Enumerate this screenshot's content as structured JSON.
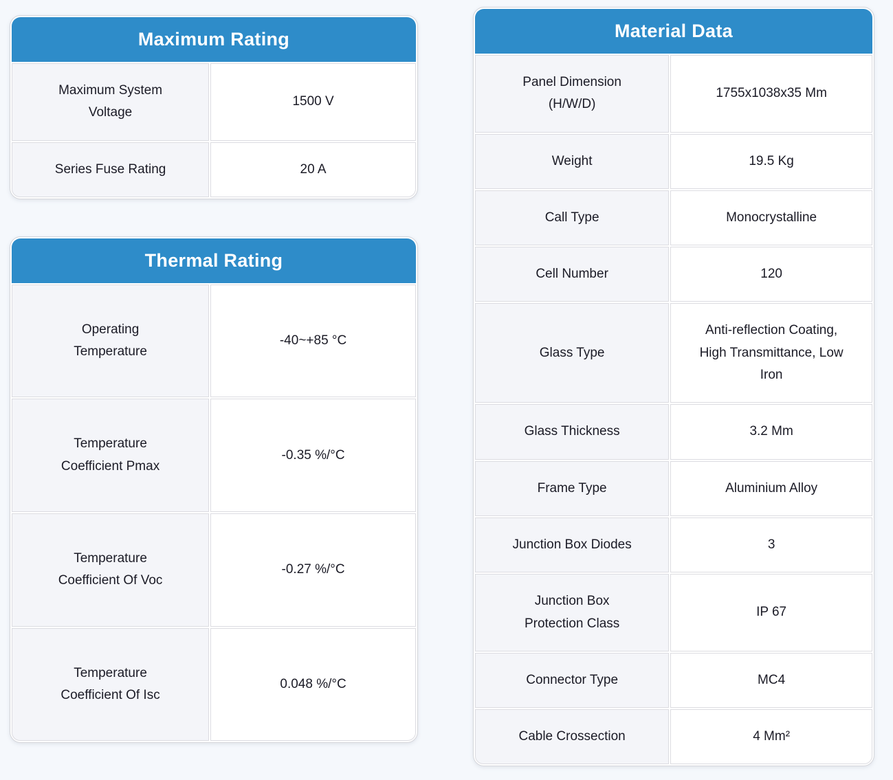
{
  "colors": {
    "accent": "#2E8CC9",
    "page_background": "#F5F8FC",
    "label_cell_background": "#F4F5F9",
    "cell_border": "#DCDCE1",
    "text": "#1B1B26",
    "header_text": "#FFFFFF"
  },
  "tables": {
    "maximum_rating": {
      "title": "Maximum Rating",
      "rows": [
        {
          "label": "Maximum System\nVoltage",
          "value": "1500 V"
        },
        {
          "label": "Series Fuse Rating",
          "value": "20 A"
        }
      ]
    },
    "thermal_rating": {
      "title": "Thermal Rating",
      "rows": [
        {
          "label": "Operating\nTemperature",
          "value": "-40~+85 °C"
        },
        {
          "label": "Temperature\nCoefficient Pmax",
          "value": "-0.35 %/°C"
        },
        {
          "label": "Temperature\nCoefficient Of Voc",
          "value": "-0.27 %/°C"
        },
        {
          "label": "Temperature\nCoefficient Of Isc",
          "value": "0.048 %/°C"
        }
      ]
    },
    "material_data": {
      "title": "Material Data",
      "rows": [
        {
          "label": "Panel Dimension\n(H/W/D)",
          "value": "1755x1038x35 Mm"
        },
        {
          "label": "Weight",
          "value": "19.5 Kg"
        },
        {
          "label": "Call Type",
          "value": "Monocrystalline"
        },
        {
          "label": "Cell Number",
          "value": "120"
        },
        {
          "label": "Glass Type",
          "value": "Anti-reflection Coating,\nHigh Transmittance, Low\nIron"
        },
        {
          "label": "Glass Thickness",
          "value": "3.2 Mm"
        },
        {
          "label": "Frame Type",
          "value": "Aluminium Alloy"
        },
        {
          "label": "Junction Box Diodes",
          "value": "3"
        },
        {
          "label": "Junction Box\nProtection Class",
          "value": "IP 67"
        },
        {
          "label": "Connector Type",
          "value": "MC4"
        },
        {
          "label": "Cable Crossection",
          "value": "4 Mm²"
        }
      ]
    }
  }
}
